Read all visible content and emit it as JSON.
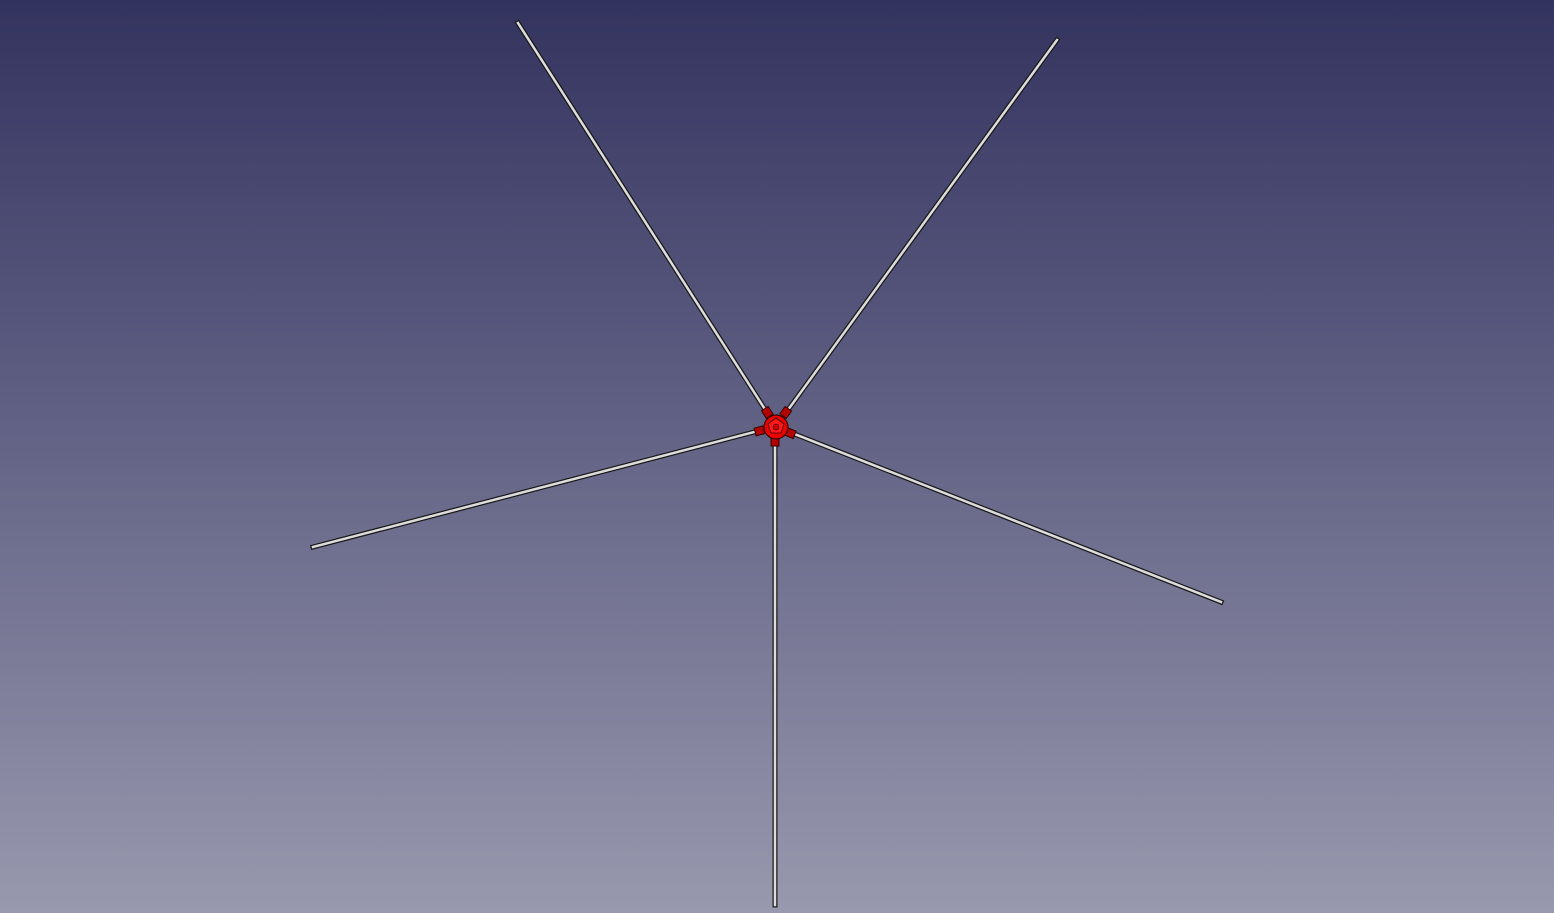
{
  "viewport": {
    "background_top": "#33335f",
    "background_bottom": "#9898ae"
  },
  "model": {
    "rod_fill": "#dcdcdc",
    "rod_outline": "#1a1a1a",
    "hub_color": "#e60000",
    "hub_outline": "#3a0000",
    "rod_count": 5,
    "hub_icon": "red-hub-connector"
  }
}
